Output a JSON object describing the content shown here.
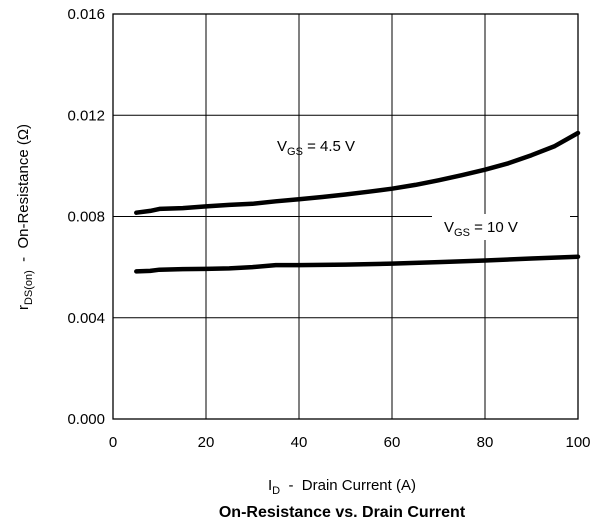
{
  "chart_data": {
    "type": "line",
    "title": "On-Resistance vs. Drain Current",
    "xlabel": {
      "main": "I",
      "sub": "D",
      "rest": "  -  Drain Current (A)"
    },
    "ylabel": {
      "main": "r",
      "sub": "DS(on)",
      "rest": "  -  On-Resistance (Ω)"
    },
    "xlim": [
      0,
      100
    ],
    "ylim": [
      0,
      0.016
    ],
    "xticks": [
      0,
      20,
      40,
      60,
      80,
      100
    ],
    "yticks": [
      0.0,
      0.004,
      0.008,
      0.012,
      0.016
    ],
    "xtick_labels": [
      "0",
      "20",
      "40",
      "60",
      "80",
      "100"
    ],
    "ytick_labels": [
      "0.000",
      "0.004",
      "0.008",
      "0.012",
      "0.016"
    ],
    "grid": true,
    "series": [
      {
        "name": {
          "main": "V",
          "sub": "GS",
          "rest": " = 4.5 V"
        },
        "x": [
          5,
          8,
          10,
          15,
          20,
          25,
          30,
          35,
          40,
          45,
          50,
          55,
          60,
          65,
          70,
          75,
          80,
          85,
          90,
          95,
          100
        ],
        "y": [
          0.00815,
          0.00822,
          0.0083,
          0.00833,
          0.0084,
          0.00846,
          0.0085,
          0.0086,
          0.00868,
          0.00877,
          0.00887,
          0.00898,
          0.0091,
          0.00925,
          0.00943,
          0.00963,
          0.00985,
          0.0101,
          0.01042,
          0.01078,
          0.0113
        ]
      },
      {
        "name": {
          "main": "V",
          "sub": "GS",
          "rest": " = 10 V"
        },
        "x": [
          5,
          8,
          10,
          15,
          20,
          25,
          30,
          35,
          40,
          50,
          60,
          70,
          80,
          90,
          100
        ],
        "y": [
          0.00583,
          0.00585,
          0.0059,
          0.00592,
          0.00593,
          0.00595,
          0.006,
          0.00608,
          0.00608,
          0.0061,
          0.00614,
          0.0062,
          0.00626,
          0.00634,
          0.00641
        ]
      }
    ]
  }
}
